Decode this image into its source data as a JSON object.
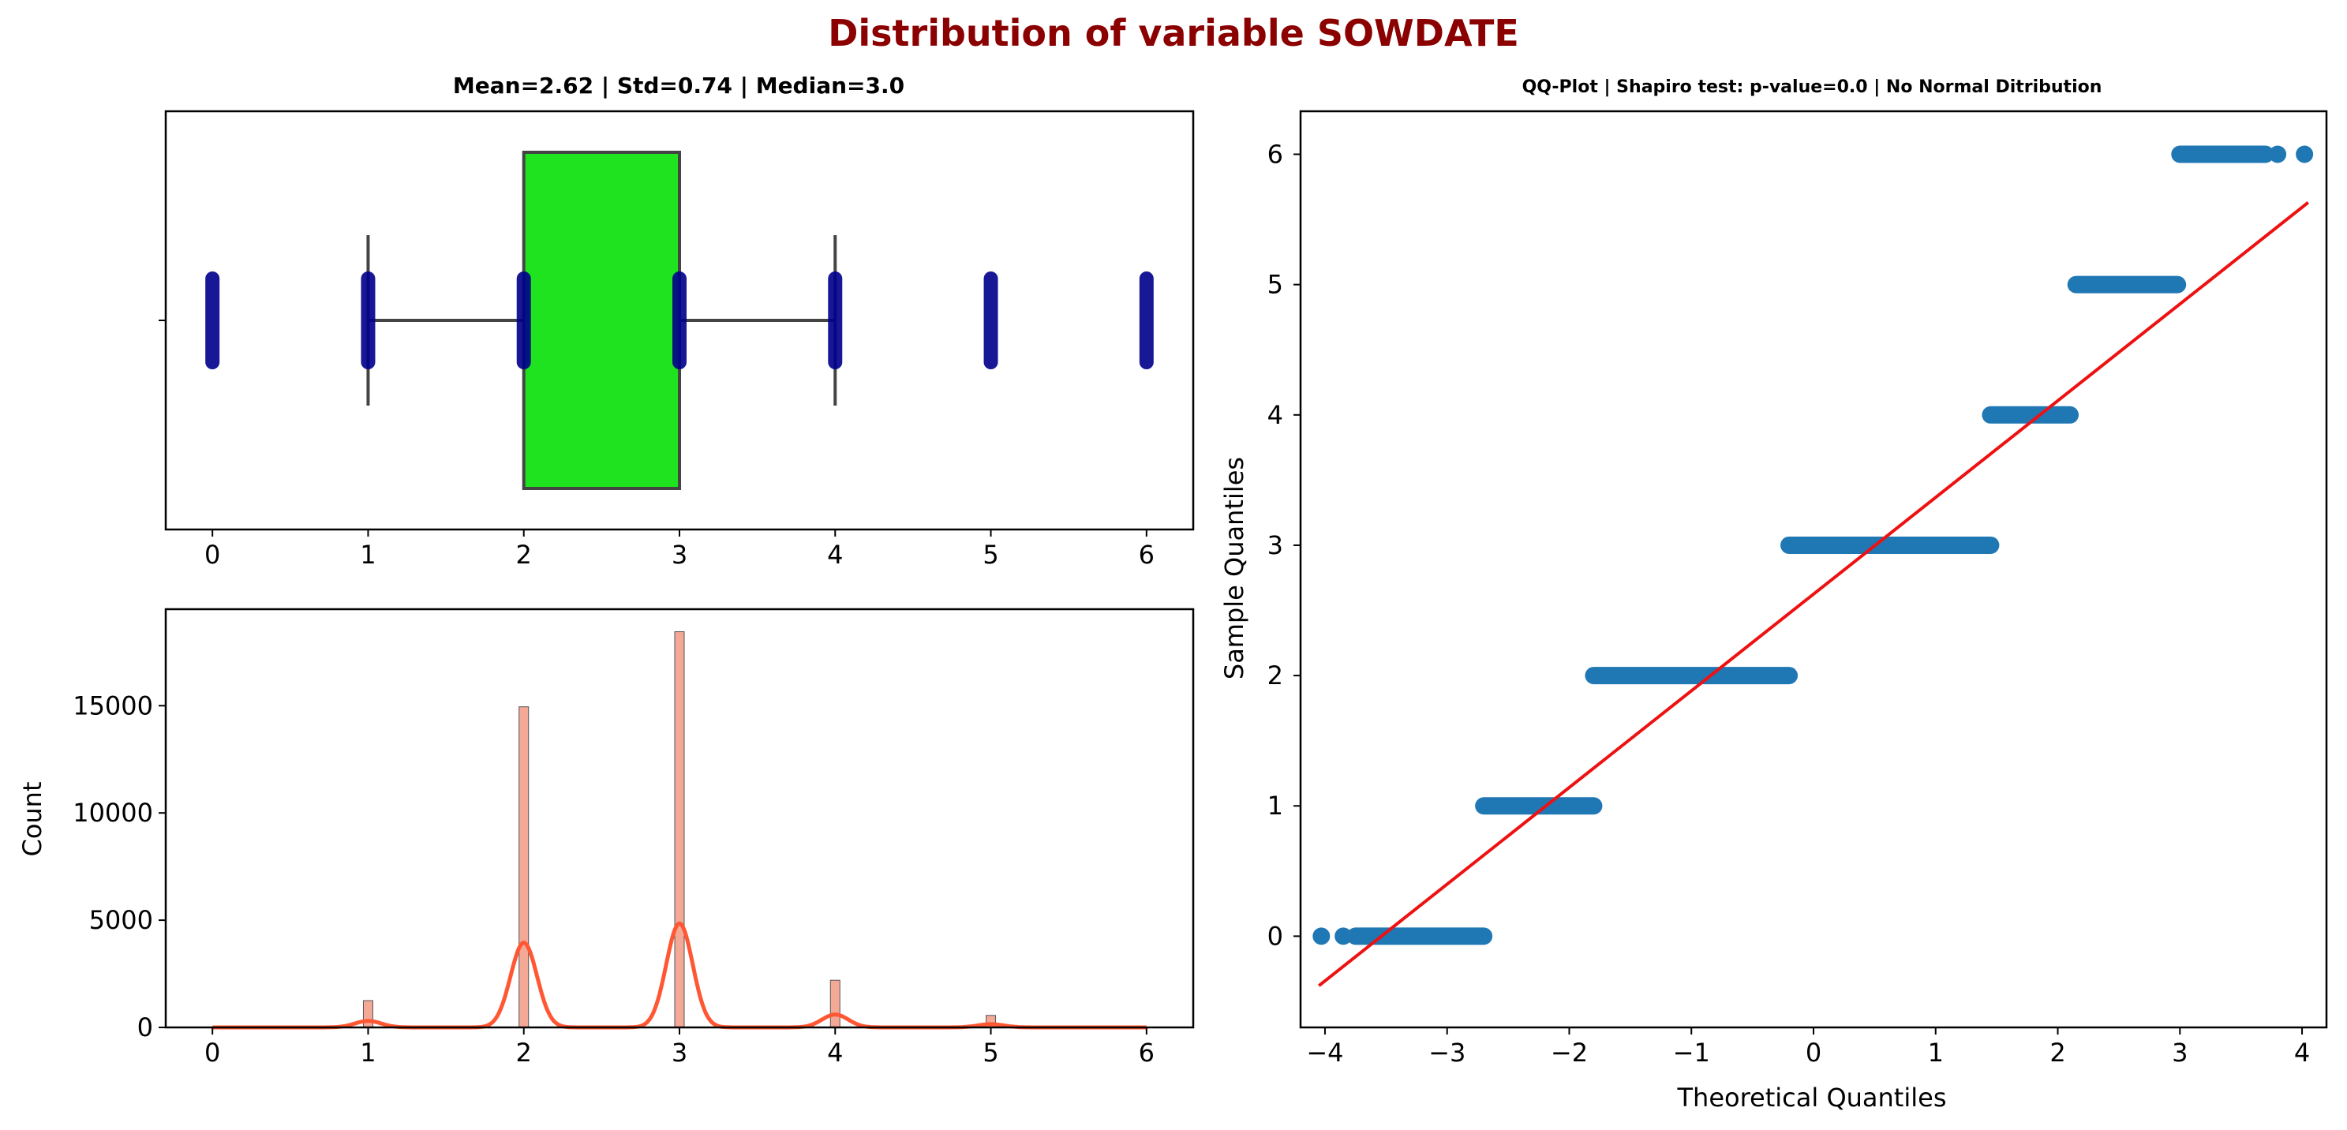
{
  "figure": {
    "suptitle": "Distribution of variable SOWDATE",
    "suptitle_color": "#8B0000"
  },
  "chart_data": [
    {
      "type": "box",
      "title": "Mean=2.62 | Std=0.74 | Median=3.0",
      "xlabel": "",
      "ylabel": "",
      "xlim": [
        -0.3,
        6.3
      ],
      "xticks": [
        "0",
        "1",
        "2",
        "3",
        "4",
        "5",
        "6"
      ],
      "q1": 2,
      "median": 3,
      "q3": 3,
      "whisker_low": 1,
      "whisker_high": 4,
      "box_color": "#1FE31F",
      "line_color": "#444444",
      "strip_points": [
        0,
        1,
        2,
        3,
        4,
        5,
        6
      ],
      "point_color": "#00008B"
    },
    {
      "type": "histogram",
      "title": "",
      "xlabel": "",
      "ylabel": "Count",
      "xlim": [
        -0.3,
        6.3
      ],
      "ylim": [
        0,
        19500
      ],
      "xticks": [
        "0",
        "1",
        "2",
        "3",
        "4",
        "5",
        "6"
      ],
      "yticks": [
        "0",
        "5000",
        "10000",
        "15000"
      ],
      "bars": [
        {
          "x": 1,
          "count": 1250
        },
        {
          "x": 2,
          "count": 14950
        },
        {
          "x": 3,
          "count": 18450
        },
        {
          "x": 4,
          "count": 2200
        },
        {
          "x": 5,
          "count": 560
        }
      ],
      "kde_peaks": [
        {
          "x": 1,
          "y": 300
        },
        {
          "x": 2,
          "y": 3950
        },
        {
          "x": 3,
          "y": 4850
        },
        {
          "x": 4,
          "y": 600
        },
        {
          "x": 5,
          "y": 150
        }
      ],
      "bar_color": "#F4A896",
      "kde_color": "#FF5733"
    },
    {
      "type": "scatter",
      "title": "QQ-Plot | Shapiro test: p-value=0.0 | No Normal Ditribution",
      "xlabel": "Theoretical Quantiles",
      "ylabel": "Sample Quantiles",
      "xlim": [
        -4.2,
        4.2
      ],
      "ylim": [
        -0.7,
        6.33
      ],
      "xticks": [
        "−4",
        "−3",
        "−2",
        "−1",
        "0",
        "1",
        "2",
        "3",
        "4"
      ],
      "yticks": [
        "0",
        "1",
        "2",
        "3",
        "4",
        "5",
        "6"
      ],
      "steps": [
        {
          "y": 0,
          "x_from": -3.75,
          "x_to": -2.7
        },
        {
          "y": 1,
          "x_from": -2.7,
          "x_to": -1.8
        },
        {
          "y": 2,
          "x_from": -1.8,
          "x_to": -0.2
        },
        {
          "y": 3,
          "x_from": -0.2,
          "x_to": 1.45
        },
        {
          "y": 4,
          "x_from": 1.45,
          "x_to": 2.1
        },
        {
          "y": 5,
          "x_from": 2.15,
          "x_to": 2.98
        },
        {
          "y": 6,
          "x_from": 3.0,
          "x_to": 3.7
        }
      ],
      "outliers": [
        {
          "x": -4.03,
          "y": 0
        },
        {
          "x": -3.85,
          "y": 0
        },
        {
          "x": 3.8,
          "y": 6
        },
        {
          "x": 4.02,
          "y": 6
        }
      ],
      "fit_line": {
        "x0": -4.05,
        "y0": -0.38,
        "x1": 4.05,
        "y1": 5.63
      },
      "point_color": "#1F77B4",
      "line_color": "#EE1111"
    }
  ]
}
